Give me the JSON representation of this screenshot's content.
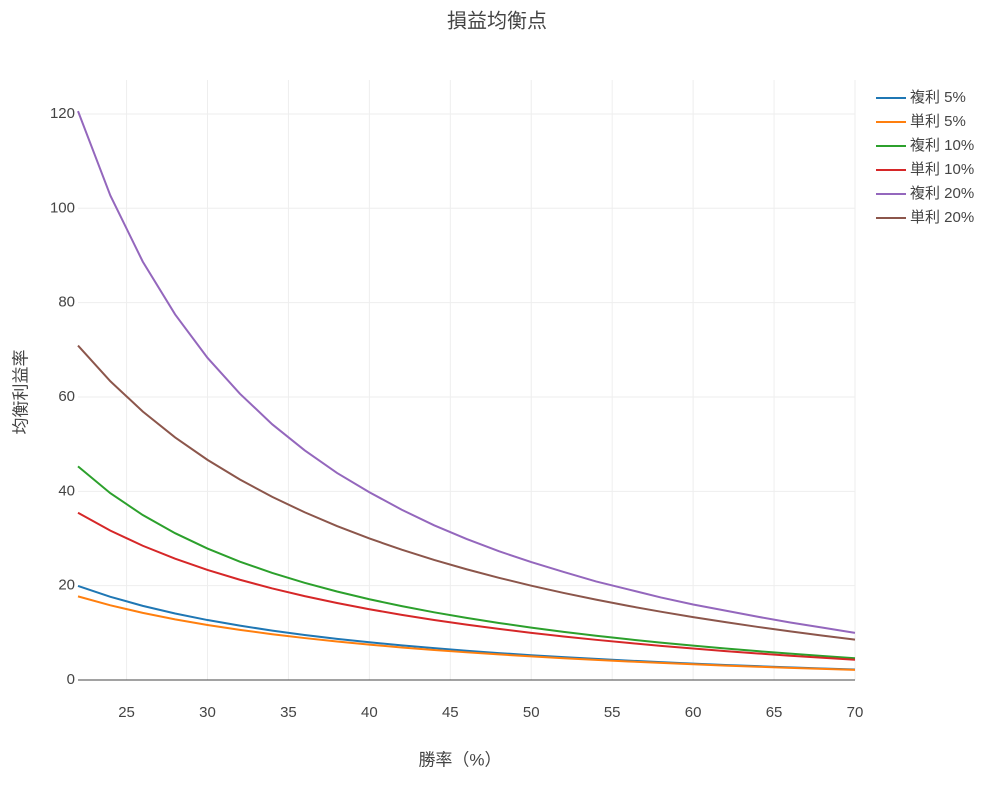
{
  "chart_data": {
    "type": "line",
    "title": "損益均衡点",
    "x_label": "勝率（%）",
    "y_label": "均衡利益率",
    "x": [
      22,
      24,
      26,
      28,
      30,
      32,
      34,
      36,
      38,
      40,
      42,
      44,
      46,
      48,
      50,
      52,
      54,
      56,
      58,
      60,
      62,
      64,
      66,
      68,
      70
    ],
    "series": [
      {
        "name": "複利 5%",
        "color": "#1f77b4",
        "values": [
          19.94,
          17.64,
          15.72,
          14.1,
          12.71,
          11.52,
          10.47,
          9.55,
          8.73,
          8.0,
          7.34,
          6.75,
          6.21,
          5.71,
          5.26,
          4.85,
          4.47,
          4.11,
          3.78,
          3.48,
          3.19,
          2.93,
          2.68,
          2.44,
          2.22
        ]
      },
      {
        "name": "単利 5%",
        "color": "#ff7f0e",
        "values": [
          17.73,
          15.83,
          14.23,
          12.86,
          11.67,
          10.63,
          9.71,
          8.89,
          8.16,
          7.5,
          6.9,
          6.36,
          5.87,
          5.42,
          5,
          4.62,
          4.26,
          3.93,
          3.62,
          3.33,
          3.06,
          2.81,
          2.58,
          2.35,
          2.14
        ]
      },
      {
        "name": "複利 10%",
        "color": "#2ca02c",
        "values": [
          45.29,
          39.6,
          34.97,
          31.12,
          27.87,
          25.09,
          22.69,
          20.6,
          18.76,
          17.12,
          15.66,
          14.35,
          13.17,
          12.09,
          11.11,
          10.21,
          9.39,
          8.63,
          7.93,
          7.28,
          6.67,
          6.11,
          5.58,
          5.08,
          4.62
        ]
      },
      {
        "name": "単利 10%",
        "color": "#d62728",
        "values": [
          35.45,
          31.67,
          28.46,
          25.71,
          23.33,
          21.25,
          19.41,
          17.78,
          16.32,
          15,
          13.81,
          12.73,
          11.74,
          10.83,
          10,
          9.23,
          8.52,
          7.86,
          7.24,
          6.67,
          6.13,
          5.63,
          5.15,
          4.71,
          4.29
        ]
      },
      {
        "name": "複利 20%",
        "color": "#9467bd",
        "values": [
          120.6,
          102.7,
          88.7,
          77.5,
          68.3,
          60.7,
          54.2,
          48.7,
          43.9,
          39.8,
          36.1,
          32.8,
          29.9,
          27.3,
          25.0,
          22.9,
          20.9,
          19.2,
          17.5,
          16.0,
          14.7,
          13.4,
          12.2,
          11.1,
          10.0
        ]
      },
      {
        "name": "単利 20%",
        "color": "#8c564b",
        "values": [
          70.91,
          63.33,
          56.92,
          51.43,
          46.67,
          42.5,
          38.82,
          35.56,
          32.63,
          30,
          27.62,
          25.45,
          23.48,
          21.67,
          20,
          18.46,
          17.04,
          15.71,
          14.48,
          13.33,
          12.26,
          11.25,
          10.3,
          9.41,
          8.57
        ]
      }
    ],
    "xlim": [
      22,
      70
    ],
    "ylim": [
      0,
      127.2
    ],
    "xticks": [
      25,
      30,
      35,
      40,
      45,
      50,
      55,
      60,
      65,
      70
    ],
    "yticks": [
      0,
      20,
      40,
      60,
      80,
      100,
      120
    ],
    "grid": true,
    "legend_position": "top-right"
  }
}
